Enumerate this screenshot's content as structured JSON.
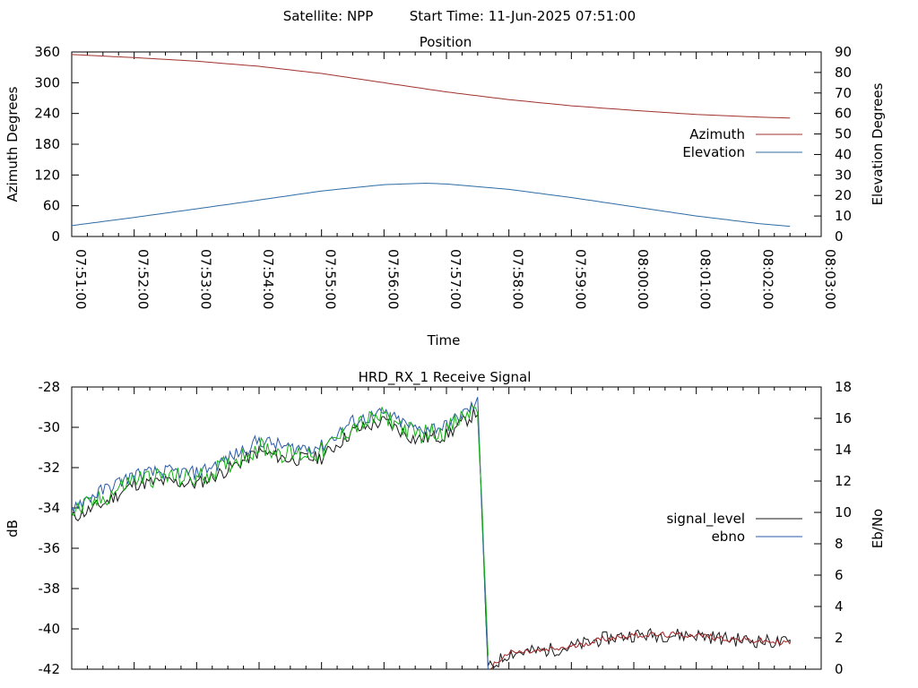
{
  "header": {
    "satellite": "Satellite: NPP",
    "start_time": "Start Time: 11-Jun-2025 07:51:00"
  },
  "colors": {
    "azimuth": "#a0322d",
    "elevation": "#2e6da4",
    "signal_level": "#1a1a1a",
    "ebno": "#2a5aa8",
    "green_trace": "#16b016",
    "red_trace": "#a02020",
    "axis": "#000000"
  },
  "chart_data": [
    {
      "type": "line",
      "title": "Position",
      "xlabel": "Time",
      "ylabel": "Azimuth Degrees",
      "y2label": "Elevation Degrees",
      "xlim": [
        "07:51:00",
        "08:03:00"
      ],
      "ylim": [
        0,
        360
      ],
      "y2lim": [
        0,
        90
      ],
      "x_tick_labels": [
        "07:51:00",
        "07:52:00",
        "07:53:00",
        "07:54:00",
        "07:55:00",
        "07:56:00",
        "07:57:00",
        "07:58:00",
        "07:59:00",
        "08:00:00",
        "08:01:00",
        "08:02:00",
        "08:03:00"
      ],
      "y_tick_labels": [
        "0",
        "60",
        "120",
        "180",
        "240",
        "300",
        "360"
      ],
      "y2_tick_labels": [
        "0",
        "10",
        "20",
        "30",
        "40",
        "50",
        "60",
        "70",
        "80",
        "90"
      ],
      "legend": "right",
      "series": [
        {
          "name": "Azimuth",
          "axis": "y",
          "x": [
            "07:51:00",
            "07:52:00",
            "07:53:00",
            "07:54:00",
            "07:55:00",
            "07:56:00",
            "07:57:00",
            "07:58:00",
            "07:59:00",
            "08:00:00",
            "08:01:00",
            "08:02:00",
            "08:02:30"
          ],
          "values": [
            355,
            349,
            342,
            332,
            318,
            300,
            282,
            267,
            255,
            246,
            238,
            233,
            231
          ]
        },
        {
          "name": "Elevation",
          "axis": "y2",
          "x": [
            "07:51:00",
            "07:52:00",
            "07:53:00",
            "07:54:00",
            "07:55:00",
            "07:56:00",
            "07:56:40",
            "07:57:00",
            "07:58:00",
            "07:59:00",
            "08:00:00",
            "08:01:00",
            "08:02:00",
            "08:02:30"
          ],
          "values": [
            5.3,
            9.3,
            13.5,
            17.8,
            22.2,
            25.3,
            26,
            25.6,
            23,
            19,
            14.5,
            10,
            6.3,
            5
          ]
        }
      ]
    },
    {
      "type": "line",
      "title": "HRD_RX_1 Receive Signal",
      "ylabel": "dB",
      "y2label": "Eb/No",
      "xlim": [
        "07:51:00",
        "08:03:00"
      ],
      "ylim": [
        -42,
        -28
      ],
      "y2lim": [
        0,
        18
      ],
      "y_tick_labels": [
        "-42",
        "-40",
        "-38",
        "-36",
        "-34",
        "-32",
        "-30",
        "-28"
      ],
      "y2_tick_labels": [
        "0",
        "2",
        "4",
        "6",
        "8",
        "10",
        "12",
        "14",
        "16",
        "18"
      ],
      "legend": "right",
      "series": [
        {
          "name": "signal_level",
          "axis": "y",
          "x": [
            "07:51:00",
            "07:51:30",
            "07:52:00",
            "07:52:30",
            "07:53:00",
            "07:53:30",
            "07:54:00",
            "07:54:30",
            "07:55:00",
            "07:55:30",
            "07:56:00",
            "07:56:30",
            "07:57:00",
            "07:57:30",
            "07:57:40",
            "07:58:00",
            "07:58:30",
            "07:59:00",
            "07:59:30",
            "08:00:00",
            "08:00:30",
            "08:01:00",
            "08:01:30",
            "08:02:00",
            "08:02:30"
          ],
          "values": [
            -34.5,
            -33.8,
            -32.8,
            -32.7,
            -32.8,
            -32.1,
            -31.2,
            -31.6,
            -31.5,
            -30.2,
            -29.7,
            -30.6,
            -30.4,
            -29.2,
            -42,
            -41.2,
            -41.1,
            -40.9,
            -40.5,
            -40.3,
            -40.3,
            -40.3,
            -40.5,
            -40.6,
            -40.7
          ]
        },
        {
          "name": "ebno",
          "axis": "y2",
          "x": [
            "07:51:00",
            "07:51:30",
            "07:52:00",
            "07:52:30",
            "07:53:00",
            "07:53:30",
            "07:54:00",
            "07:54:30",
            "07:55:00",
            "07:55:30",
            "07:56:00",
            "07:56:30",
            "07:57:00",
            "07:57:30",
            "07:57:40"
          ],
          "values": [
            10.4,
            11.4,
            12.4,
            12.6,
            12.5,
            13.4,
            14.6,
            14.1,
            14.2,
            15.8,
            16.3,
            15.3,
            15.5,
            17,
            0
          ]
        }
      ]
    }
  ]
}
